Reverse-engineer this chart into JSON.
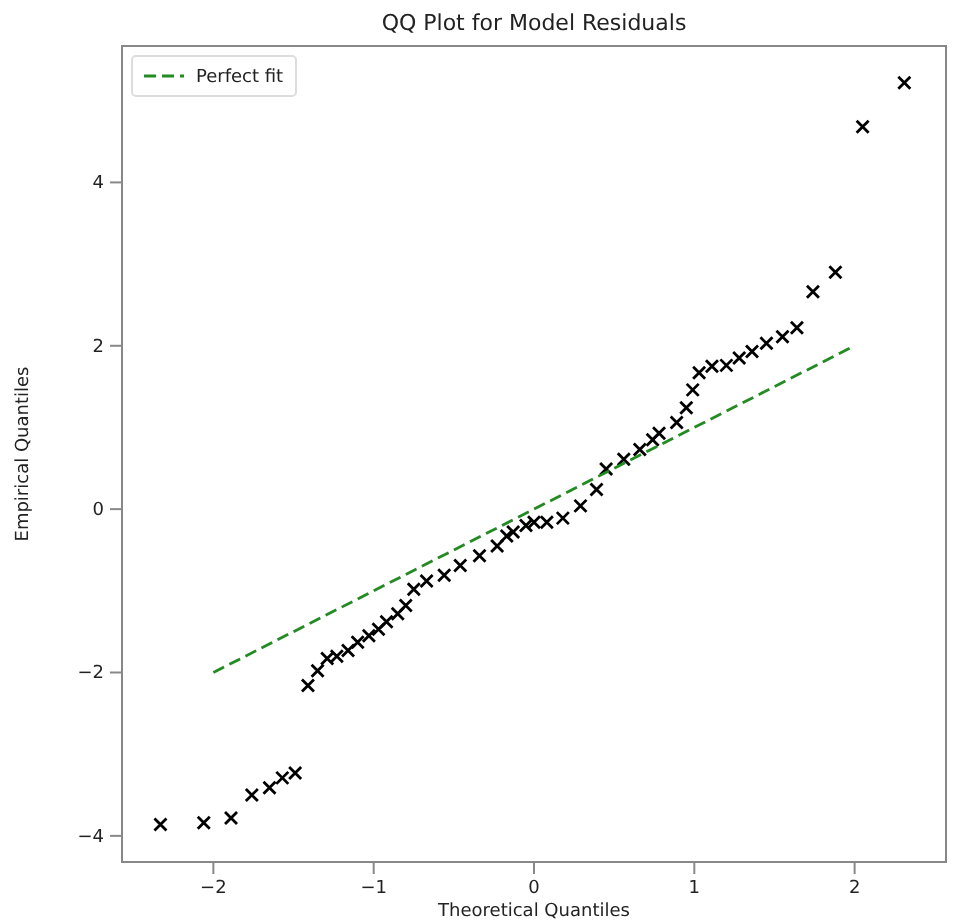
{
  "chart_data": {
    "type": "scatter",
    "title": "QQ Plot for Model Residuals",
    "xlabel": "Theoretical Quantiles",
    "ylabel": "Empirical Quantiles",
    "xlim": [
      -2.57,
      2.57
    ],
    "ylim": [
      -4.32,
      5.67
    ],
    "xticks": [
      {
        "value": -2,
        "label": "−2"
      },
      {
        "value": -1,
        "label": "−1"
      },
      0,
      1,
      2
    ],
    "yticks": [
      {
        "value": -4,
        "label": "−4"
      },
      {
        "value": -2,
        "label": "−2"
      },
      0,
      2,
      4
    ],
    "grid": false,
    "legend": "top left",
    "marker": "cross",
    "series": [
      {
        "color": "#000000",
        "x": [
          -2.33,
          -2.06,
          -1.89,
          -1.76,
          -1.65,
          -1.57,
          -1.49,
          -1.41,
          -1.35,
          -1.29,
          -1.23,
          -1.16,
          -1.1,
          -1.03,
          -0.97,
          -0.92,
          -0.85,
          -0.8,
          -0.75,
          -0.67,
          -0.56,
          -0.46,
          -0.34,
          -0.23,
          -0.17,
          -0.13,
          -0.05,
          0,
          0.08,
          0.18,
          0.29,
          0.39,
          0.45,
          0.56,
          0.66,
          0.74,
          0.78,
          0.89,
          0.95,
          0.99,
          1.03,
          1.11,
          1.2,
          1.28,
          1.36,
          1.45,
          1.55,
          1.64,
          1.74,
          1.88,
          2.05,
          2.31
        ],
        "values": [
          -3.86,
          -3.84,
          -3.78,
          -3.5,
          -3.41,
          -3.29,
          -3.23,
          -2.16,
          -1.98,
          -1.83,
          -1.8,
          -1.73,
          -1.63,
          -1.55,
          -1.47,
          -1.38,
          -1.28,
          -1.18,
          -0.98,
          -0.88,
          -0.81,
          -0.69,
          -0.57,
          -0.45,
          -0.33,
          -0.28,
          -0.2,
          -0.16,
          -0.16,
          -0.11,
          0.04,
          0.24,
          0.49,
          0.61,
          0.73,
          0.85,
          0.93,
          1.06,
          1.24,
          1.46,
          1.67,
          1.75,
          1.76,
          1.85,
          1.93,
          2.03,
          2.11,
          2.22,
          2.66,
          2.9,
          4.68,
          5.22
        ]
      },
      {
        "type": "line",
        "name": "Perfect fit",
        "color": "#228b22",
        "line_style": "dashed",
        "marker": "none",
        "x": [
          -2,
          2
        ],
        "values": [
          -2,
          2
        ]
      }
    ]
  }
}
